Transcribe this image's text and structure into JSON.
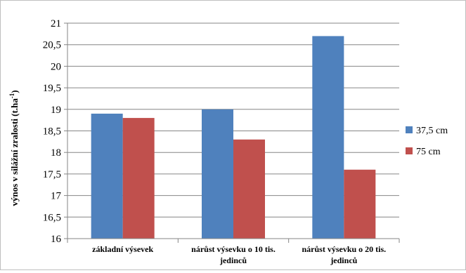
{
  "chart_data": {
    "type": "bar",
    "title": "",
    "ylabel_main": "výnos v silážní zralosti (t.ha",
    "ylabel_sup": "-1",
    "ylabel_end": ")",
    "xlabel": "",
    "categories": [
      [
        "základní výsevek"
      ],
      [
        "nárůst výsevku o 10 tis.",
        "jedinců"
      ],
      [
        "nárůst výsevku o 20 tis.",
        "jedinců"
      ]
    ],
    "series": [
      {
        "name": "37,5 cm",
        "color": "#4f81bd",
        "values": [
          18.9,
          19.0,
          20.7
        ]
      },
      {
        "name": "75 cm",
        "color": "#c0504d",
        "values": [
          18.8,
          18.3,
          17.6
        ]
      }
    ],
    "ylim": [
      16,
      21
    ],
    "ystep": 0.5,
    "yticks": [
      "16",
      "16,5",
      "17",
      "17,5",
      "18",
      "18,5",
      "19",
      "19,5",
      "20",
      "20,5",
      "21"
    ],
    "grid": true,
    "legend_position": "right"
  }
}
